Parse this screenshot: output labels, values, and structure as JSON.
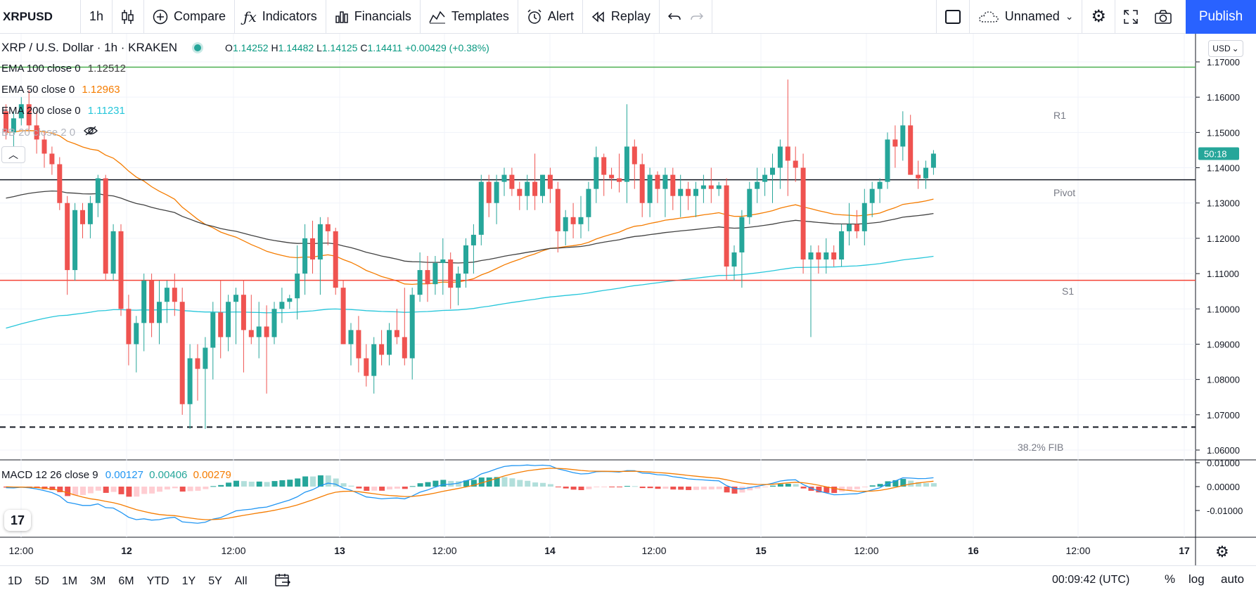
{
  "toolbar": {
    "symbol": "XRPUSD",
    "interval": "1h",
    "compare": "Compare",
    "indicators": "Indicators",
    "financials": "Financials",
    "templates": "Templates",
    "alert": "Alert",
    "replay": "Replay",
    "layout_name": "Unnamed",
    "publish": "Publish"
  },
  "header": {
    "title": "XRP / U.S. Dollar · 1h · KRAKEN",
    "o_label": "O",
    "o": "1.14252",
    "h_label": "H",
    "h": "1.14482",
    "l_label": "L",
    "l": "1.14125",
    "c_label": "C",
    "c": "1.14411",
    "change": "+0.00429 (+0.38%)"
  },
  "legend": {
    "ema100_label": "EMA 100 close 0",
    "ema100_value": "1.12512",
    "ema50_label": "EMA 50 close 0",
    "ema50_value": "1.12963",
    "ema200_label": "EMA 200 close 0",
    "ema200_value": "1.11231",
    "bb_label": "BB 20 close 2 0"
  },
  "macd": {
    "label": "MACD 12 26 close 9",
    "v1": "0.00127",
    "v2": "0.00406",
    "v3": "0.00279"
  },
  "price_axis": {
    "currency": "USD",
    "ticks": [
      "1.17000",
      "1.16000",
      "1.15000",
      "1.14000",
      "1.13000",
      "1.12000",
      "1.11000",
      "1.10000",
      "1.09000",
      "1.08000",
      "1.07000",
      "1.06000"
    ],
    "countdown": "50:18"
  },
  "macd_axis": {
    "ticks": [
      "0.01000",
      "0.00000",
      "-0.01000"
    ]
  },
  "levels": {
    "r1": "R1",
    "pivot": "Pivot",
    "s1": "S1",
    "fib": "38.2% FIB"
  },
  "time_axis": {
    "labels": [
      "12:00",
      "12",
      "12:00",
      "13",
      "12:00",
      "14",
      "12:00",
      "15",
      "12:00",
      "16",
      "12:00",
      "17"
    ]
  },
  "bottom": {
    "ranges": [
      "1D",
      "5D",
      "1M",
      "3M",
      "6M",
      "YTD",
      "1Y",
      "5Y",
      "All"
    ],
    "clock": "00:09:42 (UTC)",
    "percent": "%",
    "log": "log",
    "auto": "auto"
  },
  "colors": {
    "up": "#26a69a",
    "down": "#ef5350",
    "ema50": "#f57c00",
    "ema100": "#424242",
    "ema200": "#26c6da",
    "r1": "#4caf50",
    "s1": "#f44336",
    "accent": "#2962ff"
  },
  "chart_data": {
    "type": "candlestick",
    "y_range": [
      1.055,
      1.173
    ],
    "candles": [
      [
        1.156,
        1.158,
        1.148,
        1.15
      ],
      [
        1.15,
        1.156,
        1.146,
        1.154
      ],
      [
        1.154,
        1.16,
        1.152,
        1.158
      ],
      [
        1.158,
        1.162,
        1.15,
        1.152
      ],
      [
        1.152,
        1.156,
        1.144,
        1.148
      ],
      [
        1.148,
        1.15,
        1.14,
        1.144
      ],
      [
        1.144,
        1.146,
        1.138,
        1.141
      ],
      [
        1.141,
        1.143,
        1.128,
        1.13
      ],
      [
        1.13,
        1.132,
        1.104,
        1.111
      ],
      [
        1.111,
        1.13,
        1.108,
        1.128
      ],
      [
        1.128,
        1.13,
        1.12,
        1.124
      ],
      [
        1.124,
        1.132,
        1.12,
        1.13
      ],
      [
        1.13,
        1.138,
        1.126,
        1.137
      ],
      [
        1.137,
        1.138,
        1.108,
        1.11
      ],
      [
        1.11,
        1.124,
        1.108,
        1.122
      ],
      [
        1.122,
        1.124,
        1.098,
        1.1
      ],
      [
        1.1,
        1.104,
        1.084,
        1.09
      ],
      [
        1.09,
        1.098,
        1.082,
        1.096
      ],
      [
        1.096,
        1.11,
        1.088,
        1.108
      ],
      [
        1.108,
        1.11,
        1.092,
        1.096
      ],
      [
        1.096,
        1.108,
        1.09,
        1.102
      ],
      [
        1.102,
        1.108,
        1.096,
        1.106
      ],
      [
        1.106,
        1.11,
        1.098,
        1.102
      ],
      [
        1.102,
        1.106,
        1.07,
        1.073
      ],
      [
        1.073,
        1.09,
        1.066,
        1.086
      ],
      [
        1.086,
        1.09,
        1.074,
        1.083
      ],
      [
        1.083,
        1.092,
        1.066,
        1.089
      ],
      [
        1.089,
        1.102,
        1.08,
        1.099
      ],
      [
        1.099,
        1.108,
        1.086,
        1.092
      ],
      [
        1.092,
        1.104,
        1.088,
        1.102
      ],
      [
        1.102,
        1.106,
        1.09,
        1.104
      ],
      [
        1.104,
        1.108,
        1.082,
        1.094
      ],
      [
        1.094,
        1.104,
        1.09,
        1.092
      ],
      [
        1.092,
        1.102,
        1.086,
        1.095
      ],
      [
        1.095,
        1.101,
        1.076,
        1.092
      ],
      [
        1.092,
        1.102,
        1.09,
        1.1
      ],
      [
        1.1,
        1.106,
        1.096,
        1.102
      ],
      [
        1.102,
        1.104,
        1.1,
        1.103
      ],
      [
        1.103,
        1.118,
        1.097,
        1.11
      ],
      [
        1.11,
        1.124,
        1.104,
        1.12
      ],
      [
        1.12,
        1.125,
        1.11,
        1.114
      ],
      [
        1.114,
        1.126,
        1.104,
        1.124
      ],
      [
        1.124,
        1.126,
        1.118,
        1.122
      ],
      [
        1.122,
        1.123,
        1.104,
        1.106
      ],
      [
        1.106,
        1.108,
        1.09,
        1.09
      ],
      [
        1.09,
        1.096,
        1.084,
        1.094
      ],
      [
        1.094,
        1.098,
        1.082,
        1.086
      ],
      [
        1.086,
        1.09,
        1.078,
        1.081
      ],
      [
        1.081,
        1.092,
        1.076,
        1.09
      ],
      [
        1.09,
        1.094,
        1.084,
        1.087
      ],
      [
        1.087,
        1.096,
        1.084,
        1.094
      ],
      [
        1.094,
        1.1,
        1.09,
        1.092
      ],
      [
        1.092,
        1.106,
        1.084,
        1.086
      ],
      [
        1.086,
        1.106,
        1.08,
        1.104
      ],
      [
        1.104,
        1.116,
        1.102,
        1.111
      ],
      [
        1.111,
        1.115,
        1.102,
        1.107
      ],
      [
        1.107,
        1.115,
        1.104,
        1.113
      ],
      [
        1.113,
        1.12,
        1.104,
        1.114
      ],
      [
        1.114,
        1.116,
        1.1,
        1.106
      ],
      [
        1.106,
        1.112,
        1.101,
        1.11
      ],
      [
        1.11,
        1.12,
        1.106,
        1.118
      ],
      [
        1.118,
        1.124,
        1.11,
        1.121
      ],
      [
        1.121,
        1.138,
        1.118,
        1.136
      ],
      [
        1.136,
        1.138,
        1.126,
        1.13
      ],
      [
        1.13,
        1.138,
        1.124,
        1.136
      ],
      [
        1.136,
        1.14,
        1.132,
        1.138
      ],
      [
        1.138,
        1.14,
        1.132,
        1.134
      ],
      [
        1.134,
        1.136,
        1.128,
        1.132
      ],
      [
        1.132,
        1.138,
        1.128,
        1.136
      ],
      [
        1.136,
        1.144,
        1.128,
        1.132
      ],
      [
        1.132,
        1.138,
        1.13,
        1.138
      ],
      [
        1.138,
        1.14,
        1.13,
        1.134
      ],
      [
        1.134,
        1.136,
        1.116,
        1.122
      ],
      [
        1.122,
        1.128,
        1.118,
        1.126
      ],
      [
        1.126,
        1.13,
        1.12,
        1.124
      ],
      [
        1.124,
        1.132,
        1.12,
        1.126
      ],
      [
        1.126,
        1.136,
        1.122,
        1.134
      ],
      [
        1.134,
        1.146,
        1.13,
        1.143
      ],
      [
        1.143,
        1.144,
        1.132,
        1.138
      ],
      [
        1.138,
        1.14,
        1.134,
        1.137
      ],
      [
        1.137,
        1.144,
        1.133,
        1.136
      ],
      [
        1.136,
        1.158,
        1.13,
        1.146
      ],
      [
        1.146,
        1.148,
        1.134,
        1.141
      ],
      [
        1.141,
        1.144,
        1.126,
        1.13
      ],
      [
        1.13,
        1.14,
        1.126,
        1.138
      ],
      [
        1.138,
        1.139,
        1.13,
        1.134
      ],
      [
        1.134,
        1.14,
        1.126,
        1.138
      ],
      [
        1.138,
        1.14,
        1.128,
        1.132
      ],
      [
        1.132,
        1.138,
        1.126,
        1.134
      ],
      [
        1.134,
        1.136,
        1.128,
        1.132
      ],
      [
        1.132,
        1.136,
        1.126,
        1.134
      ],
      [
        1.134,
        1.138,
        1.13,
        1.135
      ],
      [
        1.135,
        1.14,
        1.13,
        1.134
      ],
      [
        1.134,
        1.136,
        1.132,
        1.135
      ],
      [
        1.135,
        1.137,
        1.108,
        1.112
      ],
      [
        1.112,
        1.118,
        1.108,
        1.116
      ],
      [
        1.116,
        1.128,
        1.106,
        1.126
      ],
      [
        1.126,
        1.136,
        1.124,
        1.134
      ],
      [
        1.134,
        1.14,
        1.13,
        1.136
      ],
      [
        1.136,
        1.14,
        1.132,
        1.138
      ],
      [
        1.138,
        1.144,
        1.13,
        1.14
      ],
      [
        1.14,
        1.148,
        1.134,
        1.146
      ],
      [
        1.146,
        1.165,
        1.132,
        1.142
      ],
      [
        1.142,
        1.146,
        1.136,
        1.14
      ],
      [
        1.14,
        1.144,
        1.11,
        1.114
      ],
      [
        1.114,
        1.118,
        1.092,
        1.116
      ],
      [
        1.116,
        1.118,
        1.11,
        1.114
      ],
      [
        1.114,
        1.12,
        1.11,
        1.116
      ],
      [
        1.116,
        1.118,
        1.112,
        1.114
      ],
      [
        1.114,
        1.124,
        1.112,
        1.122
      ],
      [
        1.122,
        1.13,
        1.118,
        1.124
      ],
      [
        1.124,
        1.128,
        1.12,
        1.122
      ],
      [
        1.122,
        1.134,
        1.118,
        1.13
      ],
      [
        1.13,
        1.136,
        1.126,
        1.134
      ],
      [
        1.134,
        1.137,
        1.13,
        1.136
      ],
      [
        1.136,
        1.15,
        1.134,
        1.148
      ],
      [
        1.148,
        1.152,
        1.14,
        1.146
      ],
      [
        1.146,
        1.156,
        1.142,
        1.152
      ],
      [
        1.152,
        1.155,
        1.138,
        1.138
      ],
      [
        1.138,
        1.142,
        1.134,
        1.137
      ],
      [
        1.137,
        1.142,
        1.134,
        1.14
      ],
      [
        1.14,
        1.145,
        1.138,
        1.144
      ]
    ],
    "horizontal_levels": {
      "r1": 1.1685,
      "pivot": 1.1366,
      "s1": 1.1081,
      "fib": 1.0665
    }
  }
}
